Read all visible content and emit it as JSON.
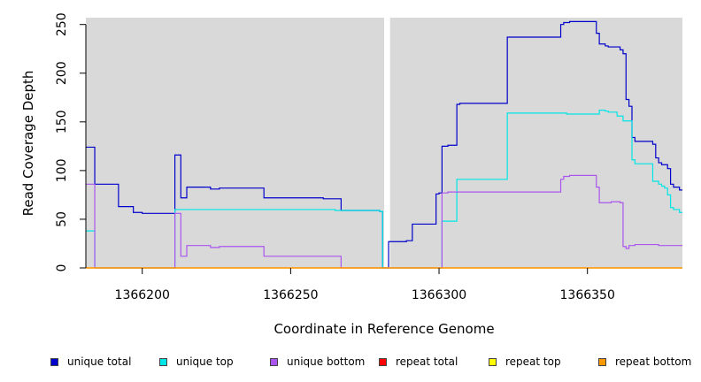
{
  "chart_data": {
    "type": "line",
    "xlabel": "Coordinate in Reference Genome",
    "ylabel": "Read Coverage Depth",
    "xlim": [
      1366181,
      1366382
    ],
    "ylim": [
      0,
      257
    ],
    "x_ticks": [
      1366200,
      1366250,
      1366300,
      1366350
    ],
    "x_tick_labels": [
      "1366200",
      "1366250",
      "1366300",
      "1366350"
    ],
    "y_ticks": [
      0,
      50,
      100,
      150,
      200,
      250
    ],
    "y_tick_labels": [
      "0",
      "50",
      "100",
      "150",
      "200",
      "250"
    ],
    "grid": false,
    "legend_position": "bottom",
    "background_color": "#d9d9d9",
    "gaps": [
      [
        1366281.5,
        1366283.5
      ]
    ],
    "series": [
      {
        "name": "unique total",
        "color": "#0000cc",
        "points": [
          [
            1366181,
            124
          ],
          [
            1366184,
            124
          ],
          [
            1366184,
            86
          ],
          [
            1366192,
            86
          ],
          [
            1366192,
            63
          ],
          [
            1366197,
            63
          ],
          [
            1366197,
            57
          ],
          [
            1366200,
            57
          ],
          [
            1366200,
            56
          ],
          [
            1366211,
            56
          ],
          [
            1366211,
            116
          ],
          [
            1366213,
            116
          ],
          [
            1366213,
            72
          ],
          [
            1366215,
            72
          ],
          [
            1366215,
            83
          ],
          [
            1366223,
            83
          ],
          [
            1366223,
            81
          ],
          [
            1366226,
            81
          ],
          [
            1366226,
            82
          ],
          [
            1366241,
            82
          ],
          [
            1366241,
            72
          ],
          [
            1366261,
            72
          ],
          [
            1366261,
            71
          ],
          [
            1366267,
            71
          ],
          [
            1366267,
            59
          ],
          [
            1366280,
            59
          ],
          [
            1366280,
            58
          ],
          [
            1366281,
            58
          ],
          [
            1366281,
            0
          ],
          [
            1366283,
            0
          ],
          [
            1366283,
            27
          ],
          [
            1366289,
            27
          ],
          [
            1366289,
            28
          ],
          [
            1366291,
            28
          ],
          [
            1366291,
            45
          ],
          [
            1366299,
            45
          ],
          [
            1366299,
            76
          ],
          [
            1366300,
            76
          ],
          [
            1366300,
            77
          ],
          [
            1366301,
            77
          ],
          [
            1366301,
            125
          ],
          [
            1366303,
            125
          ],
          [
            1366303,
            126
          ],
          [
            1366306,
            126
          ],
          [
            1366306,
            168
          ],
          [
            1366307,
            168
          ],
          [
            1366307,
            169
          ],
          [
            1366323,
            169
          ],
          [
            1366323,
            237
          ],
          [
            1366341,
            237
          ],
          [
            1366341,
            250
          ],
          [
            1366342,
            250
          ],
          [
            1366342,
            252
          ],
          [
            1366344,
            252
          ],
          [
            1366344,
            253
          ],
          [
            1366353,
            253
          ],
          [
            1366353,
            241
          ],
          [
            1366354,
            241
          ],
          [
            1366354,
            230
          ],
          [
            1366356,
            230
          ],
          [
            1366356,
            228
          ],
          [
            1366357,
            228
          ],
          [
            1366357,
            227
          ],
          [
            1366361,
            227
          ],
          [
            1366361,
            224
          ],
          [
            1366362,
            224
          ],
          [
            1366362,
            220
          ],
          [
            1366363,
            220
          ],
          [
            1366363,
            173
          ],
          [
            1366364,
            173
          ],
          [
            1366364,
            166
          ],
          [
            1366365,
            166
          ],
          [
            1366365,
            134
          ],
          [
            1366366,
            134
          ],
          [
            1366366,
            130
          ],
          [
            1366372,
            130
          ],
          [
            1366372,
            127
          ],
          [
            1366373,
            127
          ],
          [
            1366373,
            113
          ],
          [
            1366374,
            113
          ],
          [
            1366374,
            108
          ],
          [
            1366375,
            108
          ],
          [
            1366375,
            106
          ],
          [
            1366377,
            106
          ],
          [
            1366377,
            102
          ],
          [
            1366378,
            102
          ],
          [
            1366378,
            86
          ],
          [
            1366379,
            86
          ],
          [
            1366379,
            83
          ],
          [
            1366381,
            83
          ],
          [
            1366381,
            80
          ],
          [
            1366382,
            80
          ]
        ]
      },
      {
        "name": "unique top",
        "color": "#00e5e5",
        "points": [
          [
            1366181,
            38
          ],
          [
            1366184,
            38
          ],
          [
            1366184,
            0
          ],
          [
            1366211,
            0
          ],
          [
            1366211,
            60
          ],
          [
            1366265,
            60
          ],
          [
            1366265,
            59
          ],
          [
            1366280,
            59
          ],
          [
            1366280,
            58
          ],
          [
            1366281,
            58
          ],
          [
            1366281,
            0
          ],
          [
            1366301,
            0
          ],
          [
            1366301,
            48
          ],
          [
            1366306,
            48
          ],
          [
            1366306,
            91
          ],
          [
            1366323,
            91
          ],
          [
            1366323,
            159
          ],
          [
            1366343,
            159
          ],
          [
            1366343,
            158
          ],
          [
            1366354,
            158
          ],
          [
            1366354,
            162
          ],
          [
            1366356,
            162
          ],
          [
            1366356,
            161
          ],
          [
            1366357,
            161
          ],
          [
            1366357,
            160
          ],
          [
            1366360,
            160
          ],
          [
            1366360,
            156
          ],
          [
            1366362,
            156
          ],
          [
            1366362,
            151
          ],
          [
            1366365,
            151
          ],
          [
            1366365,
            111
          ],
          [
            1366366,
            111
          ],
          [
            1366366,
            107
          ],
          [
            1366372,
            107
          ],
          [
            1366372,
            89
          ],
          [
            1366374,
            89
          ],
          [
            1366374,
            86
          ],
          [
            1366375,
            86
          ],
          [
            1366375,
            84
          ],
          [
            1366376,
            84
          ],
          [
            1366376,
            82
          ],
          [
            1366377,
            82
          ],
          [
            1366377,
            75
          ],
          [
            1366378,
            75
          ],
          [
            1366378,
            62
          ],
          [
            1366379,
            62
          ],
          [
            1366379,
            60
          ],
          [
            1366381,
            60
          ],
          [
            1366381,
            57
          ],
          [
            1366382,
            57
          ]
        ]
      },
      {
        "name": "unique bottom",
        "color": "#aa55ee",
        "points": [
          [
            1366181,
            86
          ],
          [
            1366184,
            86
          ],
          [
            1366184,
            0
          ],
          [
            1366211,
            0
          ],
          [
            1366211,
            56
          ],
          [
            1366213,
            56
          ],
          [
            1366213,
            12
          ],
          [
            1366215,
            12
          ],
          [
            1366215,
            23
          ],
          [
            1366223,
            23
          ],
          [
            1366223,
            21
          ],
          [
            1366226,
            21
          ],
          [
            1366226,
            22
          ],
          [
            1366241,
            22
          ],
          [
            1366241,
            12
          ],
          [
            1366267,
            12
          ],
          [
            1366267,
            0
          ],
          [
            1366281,
            0
          ],
          [
            1366301,
            0
          ],
          [
            1366301,
            77
          ],
          [
            1366303,
            77
          ],
          [
            1366303,
            78
          ],
          [
            1366341,
            78
          ],
          [
            1366341,
            91
          ],
          [
            1366342,
            91
          ],
          [
            1366342,
            94
          ],
          [
            1366344,
            94
          ],
          [
            1366344,
            95
          ],
          [
            1366353,
            95
          ],
          [
            1366353,
            83
          ],
          [
            1366354,
            83
          ],
          [
            1366354,
            67
          ],
          [
            1366358,
            67
          ],
          [
            1366358,
            68
          ],
          [
            1366361,
            68
          ],
          [
            1366361,
            67
          ],
          [
            1366362,
            67
          ],
          [
            1366362,
            22
          ],
          [
            1366363,
            22
          ],
          [
            1366363,
            20
          ],
          [
            1366364,
            20
          ],
          [
            1366364,
            23
          ],
          [
            1366366,
            23
          ],
          [
            1366366,
            24
          ],
          [
            1366374,
            24
          ],
          [
            1366374,
            23
          ],
          [
            1366382,
            23
          ]
        ]
      },
      {
        "name": "repeat total",
        "color": "#ff0000",
        "points": [
          [
            1366181,
            0
          ],
          [
            1366382,
            0
          ]
        ]
      },
      {
        "name": "repeat top",
        "color": "#ffff00",
        "points": [
          [
            1366181,
            0
          ],
          [
            1366382,
            0
          ]
        ]
      },
      {
        "name": "repeat bottom",
        "color": "#ff9900",
        "points": [
          [
            1366181,
            0
          ],
          [
            1366382,
            0
          ]
        ]
      }
    ]
  }
}
